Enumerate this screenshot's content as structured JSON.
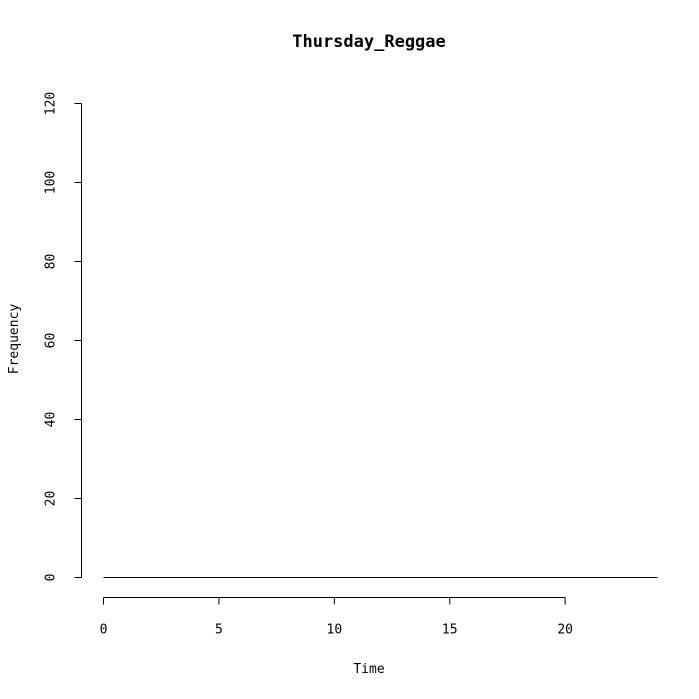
{
  "chart_data": {
    "type": "line",
    "title": "Thursday_Reggae",
    "xlabel": "Time",
    "ylabel": "Frequency",
    "xlim": [
      0,
      24
    ],
    "ylim": [
      0,
      120
    ],
    "x_ticks": [
      0,
      5,
      10,
      15,
      20
    ],
    "x_tick_labels": [
      "0",
      "5",
      "10",
      "15",
      "20"
    ],
    "y_ticks": [
      0,
      20,
      40,
      60,
      80,
      100,
      120
    ],
    "y_tick_labels": [
      "0",
      "20",
      "40",
      "60",
      "80",
      "100",
      "120"
    ],
    "grid": false,
    "series": [
      {
        "x": [
          0,
          1,
          2,
          3,
          4,
          5,
          6,
          7,
          8,
          9,
          10,
          11,
          12,
          13,
          14,
          15,
          16,
          17,
          18,
          19,
          20,
          21,
          22,
          23,
          24
        ],
        "values": [
          0,
          0,
          0,
          0,
          0,
          0,
          0,
          0,
          0,
          0,
          0,
          0,
          0,
          0,
          0,
          0,
          0,
          0,
          0,
          0,
          0,
          0,
          0,
          0,
          0
        ],
        "color": "#000000"
      }
    ]
  }
}
